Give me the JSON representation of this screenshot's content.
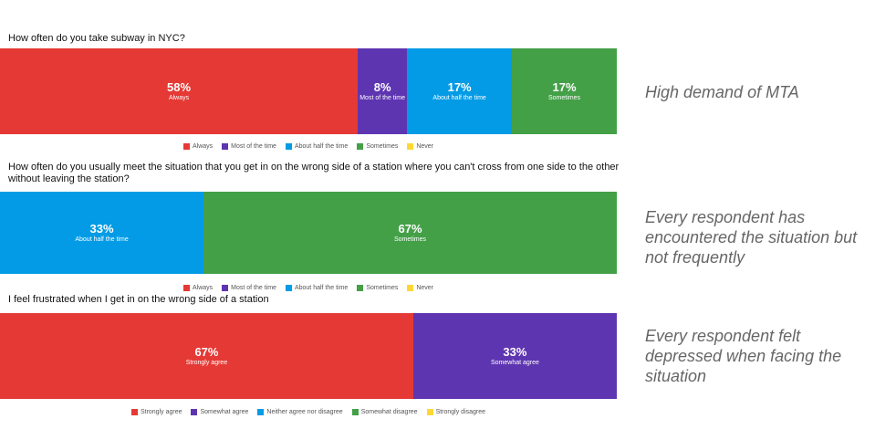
{
  "chart_data": [
    {
      "type": "bar",
      "orientation": "horizontal-stacked",
      "title": "How often do you take subway in NYC?",
      "legend": [
        "Always",
        "Most of the time",
        "About half the time",
        "Sometimes",
        "Never"
      ],
      "series": [
        {
          "name": "Always",
          "value": 58
        },
        {
          "name": "Most of the time",
          "value": 8
        },
        {
          "name": "About half the time",
          "value": 17
        },
        {
          "name": "Sometimes",
          "value": 17
        },
        {
          "name": "Never",
          "value": 0
        }
      ],
      "annotation": "High demand of MTA"
    },
    {
      "type": "bar",
      "orientation": "horizontal-stacked",
      "title": "How often do you usually meet the situation that you get in on the wrong side of a station where you can't cross from one side to the other without leaving the station?",
      "legend": [
        "Always",
        "Most of the time",
        "About half the time",
        "Sometimes",
        "Never"
      ],
      "series": [
        {
          "name": "Always",
          "value": 0
        },
        {
          "name": "Most of the time",
          "value": 0
        },
        {
          "name": "About half the time",
          "value": 33
        },
        {
          "name": "Sometimes",
          "value": 67
        },
        {
          "name": "Never",
          "value": 0
        }
      ],
      "annotation": "Every respondent has encountered the situation but not frequently"
    },
    {
      "type": "bar",
      "orientation": "horizontal-stacked",
      "title": "I feel frustrated when I get in on the wrong side of a station",
      "legend": [
        "Strongly agree",
        "Somewhat agree",
        "Neither agree nor disagree",
        "Somewhat disagree",
        "Strongly disagree"
      ],
      "series": [
        {
          "name": "Strongly agree",
          "value": 67
        },
        {
          "name": "Somewhat agree",
          "value": 33
        },
        {
          "name": "Neither agree nor disagree",
          "value": 0
        },
        {
          "name": "Somewhat disagree",
          "value": 0
        },
        {
          "name": "Strongly disagree",
          "value": 0
        }
      ],
      "annotation": "Every respondent felt depressed when facing the situation"
    }
  ],
  "colors": [
    "#e53935",
    "#5e35b1",
    "#039be5",
    "#43a047",
    "#fdd835"
  ]
}
